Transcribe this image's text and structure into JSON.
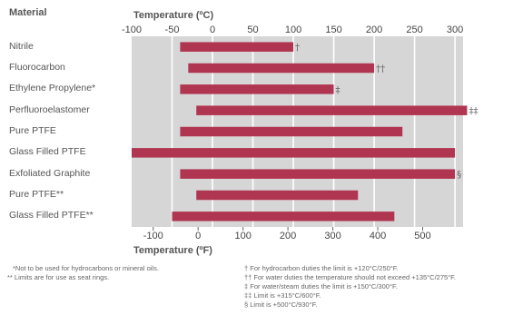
{
  "header": {
    "material_label": "Material",
    "celsius_axis_label": "Temperature (ºC)",
    "fahrenheit_axis_label": "Temperature (ºF)"
  },
  "chart_data": {
    "type": "bar",
    "orientation": "horizontal",
    "categories": [
      "Nitrile",
      "Fluorocarbon",
      "Ethylene Propylene*",
      "Perfluoroelastomer",
      "Pure PTFE",
      "Glass Filled PTFE",
      "Exfoliated Graphite",
      "Pure PTFE**",
      "Glass Filled PTFE**"
    ],
    "ranges_celsius": [
      [
        -40,
        100
      ],
      [
        -30,
        200
      ],
      [
        -40,
        150
      ],
      [
        -20,
        315
      ],
      [
        -40,
        235
      ],
      [
        -100,
        300
      ],
      [
        -40,
        300
      ],
      [
        -20,
        180
      ],
      [
        -50,
        225
      ]
    ],
    "markers": [
      "†",
      "††",
      "‡",
      "‡‡",
      "",
      "",
      "§",
      "",
      ""
    ],
    "x_top": {
      "label": "Temperature (ºC)",
      "ticks": [
        -100,
        -50,
        0,
        50,
        100,
        150,
        200,
        250,
        300
      ],
      "range": [
        -100,
        310
      ]
    },
    "x_bottom": {
      "label": "Temperature (ºF)",
      "ticks": [
        -100,
        0,
        100,
        200,
        300,
        400,
        500
      ]
    },
    "grid": true,
    "colors": {
      "bar": "#b03550",
      "plot_background": "#d6d6d6",
      "gridline": "#ffffff"
    }
  },
  "footnotes_left": [
    "*Not to be used for hydrocarbons or mineral oils.",
    "** Limits are for use as seat rings."
  ],
  "footnotes_right": [
    "† For hydrocarbon duties the limit is +120°C/250°F.",
    "†† For water duties the temperature should not exceed +135°C/275°F.",
    "‡ For water/steam duties the limit is +150°C/300°F.",
    "‡‡ Limit is +315°C/600°F.",
    "§ Limit is +500°C/930°F."
  ]
}
